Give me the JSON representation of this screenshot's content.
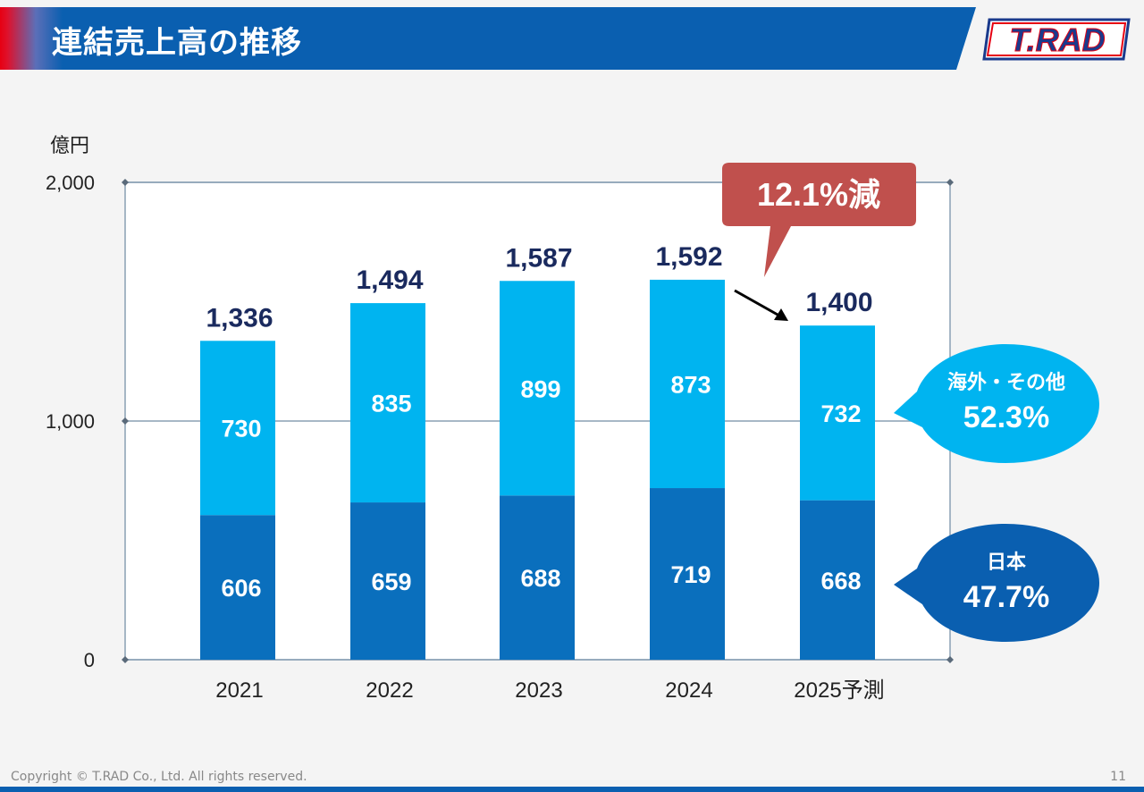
{
  "header": {
    "title": "連結売上高の推移"
  },
  "logo": {
    "text": "T.RAD"
  },
  "footer": {
    "copyright": "Copyright © T.RAD Co., Ltd. All rights reserved.",
    "page": "11"
  },
  "unit_label": "億円",
  "colors": {
    "header_blue": "#0a5fb0",
    "overseas": "#00b4f0",
    "japan": "#0a6fbd",
    "total_label": "#1a2a5e",
    "callout_red": "#c0504d"
  },
  "chart_data": {
    "type": "bar",
    "stacked": true,
    "categories": [
      "2021",
      "2022",
      "2023",
      "2024",
      "2025予測"
    ],
    "series": [
      {
        "name": "日本",
        "values": [
          606,
          659,
          688,
          719,
          668
        ]
      },
      {
        "name": "海外・その他",
        "values": [
          730,
          835,
          899,
          873,
          732
        ]
      }
    ],
    "totals": [
      1336,
      1494,
      1587,
      1592,
      1400
    ],
    "total_labels": [
      "1,336",
      "1,494",
      "1,587",
      "1,592",
      "1,400"
    ],
    "y_ticks": [
      "0",
      "1,000",
      "2,000"
    ],
    "ylim": [
      0,
      2000
    ],
    "grid": true,
    "annotations": {
      "change": "12.1%減",
      "overseas_bubble": {
        "label": "海外・その他",
        "share": "52.3%"
      },
      "japan_bubble": {
        "label": "日本",
        "share": "47.7%"
      }
    }
  }
}
